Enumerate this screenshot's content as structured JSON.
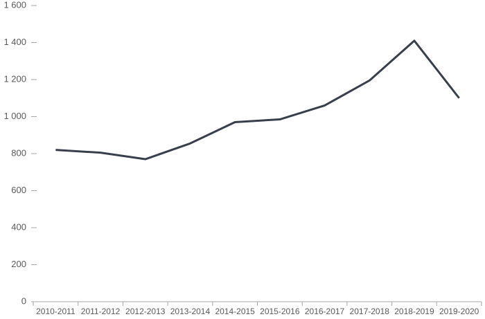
{
  "chart_data": {
    "type": "line",
    "categories": [
      "2010-2011",
      "2011-2012",
      "2012-2013",
      "2013-2014",
      "2014-2015",
      "2015-2016",
      "2016-2017",
      "2017-2018",
      "2018-2019",
      "2019-2020"
    ],
    "series": [
      {
        "color": "#383f4b",
        "values": [
          820,
          805,
          770,
          855,
          970,
          985,
          1060,
          1195,
          1410,
          1100
        ]
      }
    ],
    "ylim": [
      0,
      1600
    ],
    "yticks": [
      0,
      200,
      400,
      600,
      800,
      {
        "value": 1000,
        "label": "1 000"
      },
      {
        "value": 1200,
        "label": "1 200"
      },
      {
        "value": 1400,
        "label": "1 400"
      },
      {
        "value": 1600,
        "label": "1 600"
      }
    ],
    "grid": false
  }
}
